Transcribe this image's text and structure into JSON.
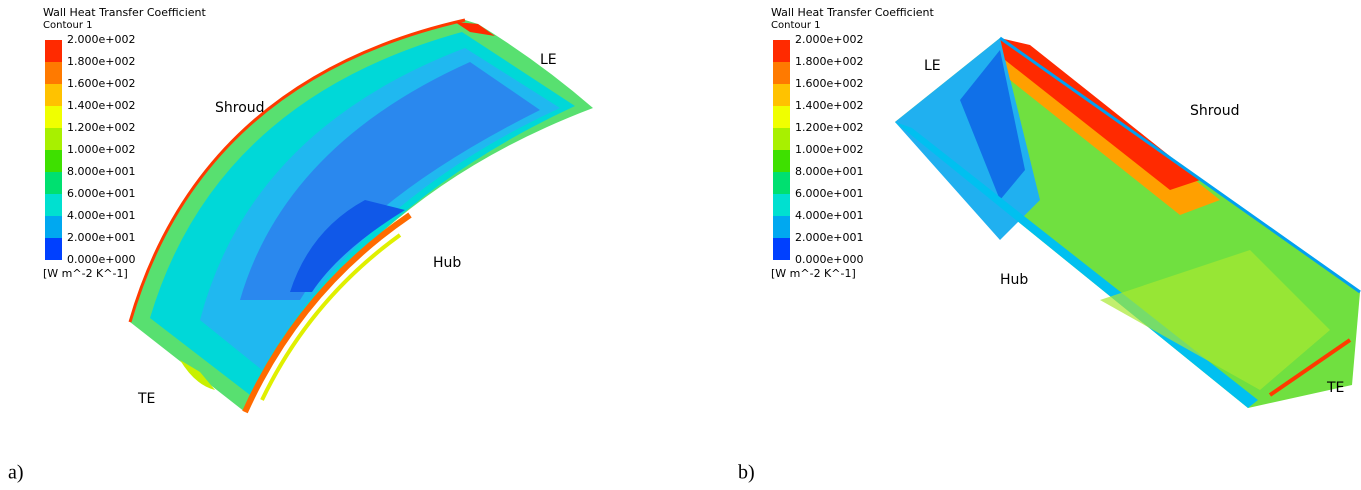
{
  "panels": [
    {
      "label": "a)",
      "legend": {
        "title": "Wall Heat Transfer Coefficient",
        "subtitle": "Contour 1",
        "ticks": [
          "2.000e+002",
          "1.800e+002",
          "1.600e+002",
          "1.400e+002",
          "1.200e+002",
          "1.000e+002",
          "8.000e+001",
          "6.000e+001",
          "4.000e+001",
          "2.000e+001",
          "0.000e+000"
        ],
        "unit": "[W m^-2 K^-1]",
        "colors": [
          "#ff2a00",
          "#ff7a00",
          "#ffc200",
          "#f0ff00",
          "#a8f000",
          "#3ee000",
          "#00e070",
          "#00e0d0",
          "#00a8f0",
          "#0040ff"
        ]
      },
      "annotations": [
        "Shroud",
        "LE",
        "Hub",
        "TE"
      ]
    },
    {
      "label": "b)",
      "legend": {
        "title": "Wall Heat Transfer Coefficient",
        "subtitle": "Contour 1",
        "ticks": [
          "2.000e+002",
          "1.800e+002",
          "1.600e+002",
          "1.400e+002",
          "1.200e+002",
          "1.000e+002",
          "8.000e+001",
          "6.000e+001",
          "4.000e+001",
          "2.000e+001",
          "0.000e+000"
        ],
        "unit": "[W m^-2 K^-1]",
        "colors": [
          "#ff2a00",
          "#ff7a00",
          "#ffc200",
          "#f0ff00",
          "#a8f000",
          "#3ee000",
          "#00e070",
          "#00e0d0",
          "#00a8f0",
          "#0040ff"
        ]
      },
      "annotations": [
        "LE",
        "Shroud",
        "Hub",
        "TE"
      ]
    }
  ]
}
